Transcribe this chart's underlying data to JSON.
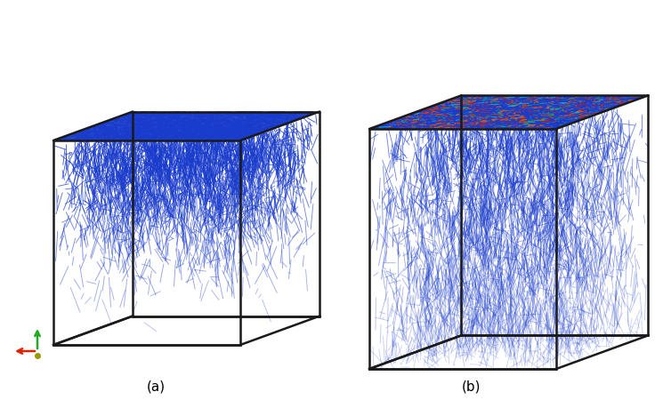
{
  "label_a": "(a)",
  "label_b": "(b)",
  "background_color": "#ffffff",
  "fig_width": 7.45,
  "fig_height": 4.5,
  "dpi": 100,
  "label_fontsize": 11,
  "crack_color": "#1a3ccc",
  "top_noise_colors": [
    "#cc1100",
    "#dd4400",
    "#ee7700",
    "#22bb44",
    "#00bbcc",
    "#1133cc",
    "#ee2200",
    "#ff5500"
  ],
  "arrow_red": "#dd2200",
  "arrow_green": "#22aa22",
  "arrow_dot": "#999900"
}
